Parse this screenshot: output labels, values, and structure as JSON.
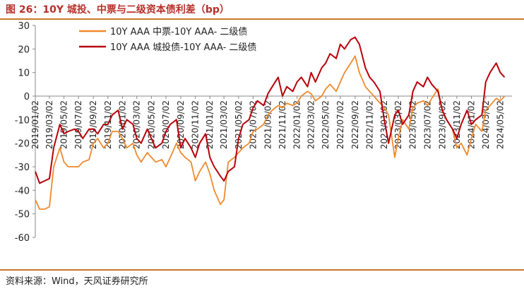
{
  "header": {
    "title": "图 26：10Y 城投、中票与二级资本债利差（bp）"
  },
  "footer": {
    "source": "资料来源：Wind，天风证券研究所"
  },
  "colors": {
    "series1": "#f0892c",
    "series2": "#b8000a",
    "accent": "#c8792b",
    "text": "#222222"
  },
  "chart_data": {
    "type": "line",
    "title": "图 26：10Y 城投、中票与二级资本债利差（bp）",
    "xlabel": "",
    "ylabel": "",
    "ylim": [
      -60,
      30
    ],
    "yticks": [
      30,
      20,
      10,
      0,
      -10,
      -20,
      -30,
      -40,
      -50,
      -60
    ],
    "xticks": [
      "2019/01/02",
      "2019/03/02",
      "2019/05/02",
      "2019/07/02",
      "2019/09/02",
      "2019/11/02",
      "2020/01/02",
      "2020/03/02",
      "2020/05/02",
      "2020/07/02",
      "2020/09/02",
      "2020/11/02",
      "2021/01/02",
      "2021/03/02",
      "2021/05/02",
      "2021/07/02",
      "2021/09/02",
      "2021/11/02",
      "2022/01/02",
      "2022/03/02",
      "2022/05/02",
      "2022/07/02",
      "2022/09/02",
      "2022/11/02",
      "2023/01/02",
      "2023/03/02",
      "2023/05/02",
      "2023/07/02",
      "2023/09/02",
      "2023/11/02",
      "2024/01/02",
      "2024/03/02",
      "2024/05/02"
    ],
    "legend_position": "top",
    "grid": false,
    "series": [
      {
        "name": "10Y AAA 中票-10Y AAA- 二级债",
        "color": "#f0892c",
        "x": [
          "2019/01/02",
          "2019/01/20",
          "2019/02/10",
          "2019/03/02",
          "2019/03/20",
          "2019/04/15",
          "2019/05/02",
          "2019/05/20",
          "2019/06/15",
          "2019/07/02",
          "2019/07/20",
          "2019/08/15",
          "2019/09/02",
          "2019/09/20",
          "2019/10/15",
          "2019/11/02",
          "2019/11/20",
          "2019/12/15",
          "2020/01/02",
          "2020/01/20",
          "2020/02/15",
          "2020/03/02",
          "2020/03/20",
          "2020/04/15",
          "2020/05/02",
          "2020/05/20",
          "2020/06/15",
          "2020/07/02",
          "2020/07/20",
          "2020/08/15",
          "2020/09/02",
          "2020/09/20",
          "2020/10/15",
          "2020/11/02",
          "2020/11/20",
          "2020/12/15",
          "2021/01/02",
          "2021/01/20",
          "2021/02/15",
          "2021/03/02",
          "2021/03/20",
          "2021/04/15",
          "2021/05/02",
          "2021/05/20",
          "2021/06/15",
          "2021/07/02",
          "2021/07/20",
          "2021/08/15",
          "2021/09/02",
          "2021/09/20",
          "2021/10/15",
          "2021/11/02",
          "2021/11/20",
          "2021/12/15",
          "2022/01/02",
          "2022/01/20",
          "2022/02/15",
          "2022/03/02",
          "2022/03/20",
          "2022/04/15",
          "2022/05/02",
          "2022/05/20",
          "2022/06/15",
          "2022/07/02",
          "2022/07/20",
          "2022/08/15",
          "2022/09/02",
          "2022/09/20",
          "2022/10/15",
          "2022/11/02",
          "2022/11/20",
          "2022/12/15",
          "2023/01/02",
          "2023/01/20",
          "2023/02/15",
          "2023/03/02",
          "2023/03/20",
          "2023/04/15",
          "2023/05/02",
          "2023/05/20",
          "2023/06/15",
          "2023/07/02",
          "2023/07/20",
          "2023/08/15",
          "2023/09/02",
          "2023/09/20",
          "2023/10/15",
          "2023/11/02",
          "2023/11/20",
          "2023/12/15",
          "2024/01/02",
          "2024/01/20",
          "2024/02/15",
          "2024/03/02",
          "2024/03/20",
          "2024/04/15",
          "2024/05/02",
          "2024/05/20"
        ],
        "values": [
          -44,
          -48,
          -48,
          -47,
          -30,
          -22,
          -28,
          -30,
          -30,
          -30,
          -28,
          -27,
          -20,
          -18,
          -22,
          -20,
          -15,
          -15,
          -18,
          -22,
          -20,
          -25,
          -28,
          -24,
          -26,
          -28,
          -27,
          -30,
          -26,
          -20,
          -24,
          -26,
          -28,
          -36,
          -32,
          -28,
          -33,
          -40,
          -46,
          -44,
          -28,
          -26,
          -24,
          -22,
          -20,
          -15,
          -14,
          -12,
          -8,
          -6,
          -4,
          -5,
          -3,
          -4,
          -3,
          0,
          2,
          1,
          -2,
          0,
          3,
          5,
          2,
          6,
          10,
          14,
          17,
          10,
          4,
          2,
          0,
          -3,
          -5,
          -8,
          -26,
          -18,
          -10,
          -14,
          -5,
          -3,
          -2,
          -4,
          -1,
          3,
          -6,
          -10,
          -14,
          -22,
          -20,
          -25,
          -18,
          -12,
          -15,
          -6,
          -4,
          -1,
          -2,
          0
        ]
      },
      {
        "name": "10Y AAA 城投债-10Y AAA- 二级债",
        "color": "#b8000a",
        "x": [
          "2019/01/02",
          "2019/01/20",
          "2019/02/10",
          "2019/03/02",
          "2019/03/20",
          "2019/04/15",
          "2019/05/02",
          "2019/05/20",
          "2019/06/15",
          "2019/07/02",
          "2019/07/20",
          "2019/08/15",
          "2019/09/02",
          "2019/09/20",
          "2019/10/15",
          "2019/11/02",
          "2019/11/20",
          "2019/12/15",
          "2020/01/02",
          "2020/01/20",
          "2020/02/15",
          "2020/03/02",
          "2020/03/20",
          "2020/04/15",
          "2020/05/02",
          "2020/05/20",
          "2020/06/15",
          "2020/07/02",
          "2020/07/20",
          "2020/08/15",
          "2020/09/02",
          "2020/09/20",
          "2020/10/15",
          "2020/11/02",
          "2020/11/20",
          "2020/12/15",
          "2021/01/02",
          "2021/01/20",
          "2021/02/15",
          "2021/03/02",
          "2021/03/20",
          "2021/04/15",
          "2021/05/02",
          "2021/05/20",
          "2021/06/15",
          "2021/07/02",
          "2021/07/20",
          "2021/08/15",
          "2021/09/02",
          "2021/09/20",
          "2021/10/15",
          "2021/11/02",
          "2021/11/20",
          "2021/12/15",
          "2022/01/02",
          "2022/01/20",
          "2022/02/15",
          "2022/03/02",
          "2022/03/20",
          "2022/04/15",
          "2022/05/02",
          "2022/05/20",
          "2022/06/15",
          "2022/07/02",
          "2022/07/20",
          "2022/08/15",
          "2022/09/02",
          "2022/09/20",
          "2022/10/15",
          "2022/11/02",
          "2022/11/20",
          "2022/12/15",
          "2023/01/02",
          "2023/01/20",
          "2023/02/15",
          "2023/03/02",
          "2023/03/20",
          "2023/04/15",
          "2023/05/02",
          "2023/05/20",
          "2023/06/15",
          "2023/07/02",
          "2023/07/20",
          "2023/08/15",
          "2023/09/02",
          "2023/09/20",
          "2023/10/15",
          "2023/11/02",
          "2023/11/20",
          "2023/12/15",
          "2024/01/02",
          "2024/01/20",
          "2024/02/15",
          "2024/03/02",
          "2024/03/20",
          "2024/04/15",
          "2024/05/02",
          "2024/05/20"
        ],
        "values": [
          -32,
          -37,
          -36,
          -35,
          -22,
          -12,
          -16,
          -15,
          -14,
          -15,
          -18,
          -14,
          -14,
          -16,
          -12,
          -12,
          -8,
          -6,
          -14,
          -10,
          -12,
          -18,
          -20,
          -14,
          -18,
          -22,
          -20,
          -15,
          -12,
          -10,
          -22,
          -18,
          -22,
          -26,
          -20,
          -16,
          -26,
          -30,
          -34,
          -36,
          -32,
          -30,
          -18,
          -12,
          -10,
          -5,
          -2,
          -4,
          1,
          4,
          8,
          0,
          4,
          2,
          6,
          8,
          4,
          10,
          6,
          12,
          14,
          18,
          16,
          22,
          20,
          24,
          25,
          22,
          12,
          8,
          6,
          2,
          -10,
          -20,
          -8,
          -6,
          -12,
          -8,
          2,
          6,
          4,
          8,
          5,
          2,
          -6,
          -10,
          -14,
          -18,
          -12,
          -6,
          -12,
          -10,
          -8,
          6,
          10,
          14,
          10,
          8
        ]
      }
    ]
  }
}
